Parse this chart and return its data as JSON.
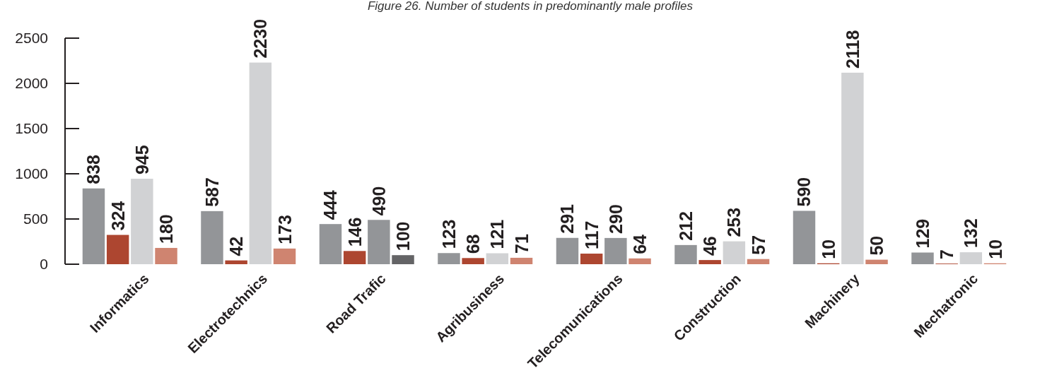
{
  "chart_data": {
    "type": "bar",
    "title": "Figure 26. Number of students in predominantly male profiles",
    "categories": [
      "Informatics",
      "Electrotechnics",
      "Road Trafic",
      "Agribusiness",
      "Telecomunications",
      "Construction",
      "Machinery",
      "Mechatronic"
    ],
    "series": [
      {
        "colors": [
          "#939598",
          "#939598",
          "#939598",
          "#939598",
          "#939598",
          "#939598",
          "#939598",
          "#939598"
        ],
        "values": [
          838,
          587,
          444,
          123,
          291,
          212,
          590,
          129
        ]
      },
      {
        "colors": [
          "#ad4630",
          "#ad4630",
          "#ad4630",
          "#ad4630",
          "#ad4630",
          "#ad4630",
          "#ad4630",
          "#ad4630"
        ],
        "values": [
          324,
          42,
          146,
          68,
          117,
          46,
          10,
          7
        ]
      },
      {
        "colors": [
          "#d1d2d4",
          "#d1d2d4",
          "#939598",
          "#d1d2d4",
          "#939598",
          "#d1d2d4",
          "#d1d2d4",
          "#d1d2d4"
        ],
        "values": [
          945,
          2230,
          490,
          121,
          290,
          253,
          2118,
          132
        ]
      },
      {
        "colors": [
          "#cf8470",
          "#cf8470",
          "#646466",
          "#cf8470",
          "#cf8470",
          "#cf8470",
          "#cf8470",
          "#cf8470"
        ],
        "values": [
          180,
          173,
          100,
          71,
          64,
          57,
          50,
          10
        ]
      }
    ],
    "ylim": [
      0,
      2500
    ],
    "yticks": [
      0,
      500,
      1000,
      1500,
      2000,
      2500
    ],
    "data_labels": true,
    "grid": false
  }
}
